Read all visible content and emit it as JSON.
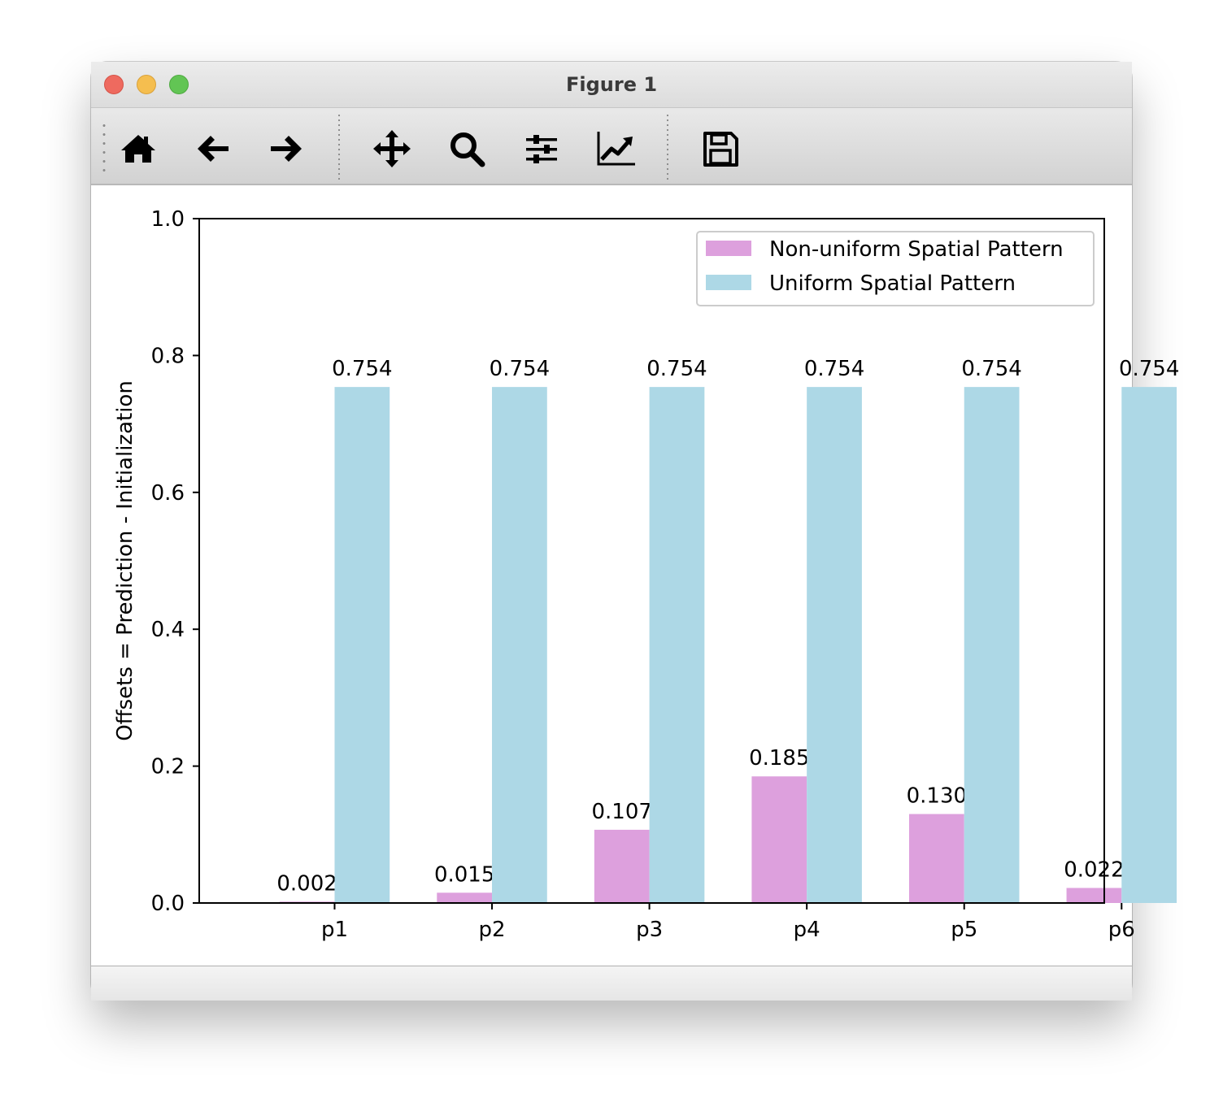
{
  "window": {
    "title": "Figure 1"
  },
  "toolbar": {
    "tools": [
      {
        "name": "home-icon"
      },
      {
        "name": "back-arrow-icon"
      },
      {
        "name": "forward-arrow-icon"
      },
      {
        "name": "pan-move-icon"
      },
      {
        "name": "zoom-magnifier-icon"
      },
      {
        "name": "subplots-sliders-icon"
      },
      {
        "name": "edit-axis-chart-icon"
      },
      {
        "name": "save-floppy-icon"
      }
    ]
  },
  "chart_data": {
    "type": "bar",
    "categories": [
      "p1",
      "p2",
      "p3",
      "p4",
      "p5",
      "p6"
    ],
    "series": [
      {
        "name": "Non-uniform Spatial Pattern",
        "color": "#dda0dd",
        "values": [
          0.002,
          0.015,
          0.107,
          0.185,
          0.13,
          0.022
        ],
        "labels": [
          "0.002",
          "0.015",
          "0.107",
          "0.185",
          "0.130",
          "0.022"
        ]
      },
      {
        "name": "Uniform Spatial Pattern",
        "color": "#add8e6",
        "values": [
          0.754,
          0.754,
          0.754,
          0.754,
          0.754,
          0.754
        ],
        "labels": [
          "0.754",
          "0.754",
          "0.754",
          "0.754",
          "0.754",
          "0.754"
        ]
      }
    ],
    "title": "",
    "xlabel": "",
    "ylabel": "Offsets = Prediction - Initialization",
    "ylim": [
      0,
      1.0
    ],
    "yticks": [
      "0.0",
      "0.2",
      "0.4",
      "0.6",
      "0.8",
      "1.0"
    ],
    "legend_position": "upper-right",
    "grid": false
  }
}
